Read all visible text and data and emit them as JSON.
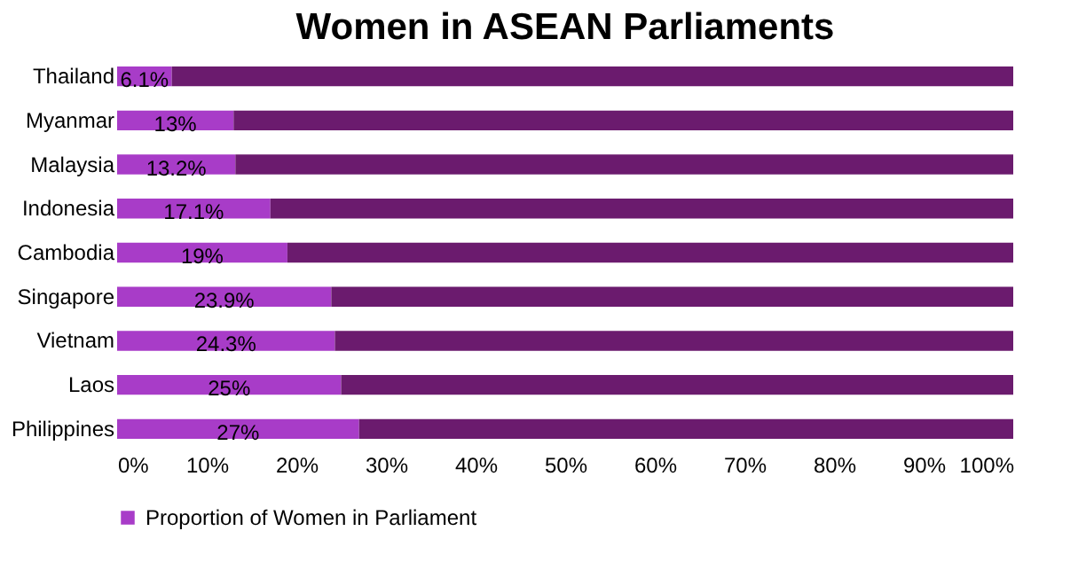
{
  "chart_data": {
    "type": "bar",
    "orientation": "horizontal",
    "stacked": true,
    "title": "Women in ASEAN Parliaments",
    "categories": [
      "Thailand",
      "Myanmar",
      "Malaysia",
      "Indonesia",
      "Cambodia",
      "Singapore",
      "Vietnam",
      "Laos",
      "Philippines"
    ],
    "series": [
      {
        "name": "Proportion of Women in Parliament",
        "color": "#a83cc8",
        "values": [
          6.1,
          13,
          13.2,
          17.1,
          19,
          23.9,
          24.3,
          25,
          27
        ],
        "value_labels": [
          "6.1%",
          "13%",
          "13.2%",
          "17.1%",
          "19%",
          "23.9%",
          "24.3%",
          "25%",
          "27%"
        ]
      },
      {
        "color": "#6b1b6e",
        "values": [
          93.9,
          87,
          86.8,
          82.9,
          81,
          76.1,
          75.7,
          75,
          73
        ]
      }
    ],
    "xlim": [
      0,
      100
    ],
    "xticks": [
      {
        "value": 0,
        "label": "0%"
      },
      {
        "value": 10,
        "label": "10%"
      },
      {
        "value": 20,
        "label": "20%"
      },
      {
        "value": 30,
        "label": "30%"
      },
      {
        "value": 40,
        "label": "40%"
      },
      {
        "value": 50,
        "label": "50%"
      },
      {
        "value": 60,
        "label": "60%"
      },
      {
        "value": 70,
        "label": "70%"
      },
      {
        "value": 80,
        "label": "80%"
      },
      {
        "value": 90,
        "label": "90%"
      },
      {
        "value": 100,
        "label": "100%"
      }
    ],
    "legend": "bottom",
    "grid": false
  }
}
